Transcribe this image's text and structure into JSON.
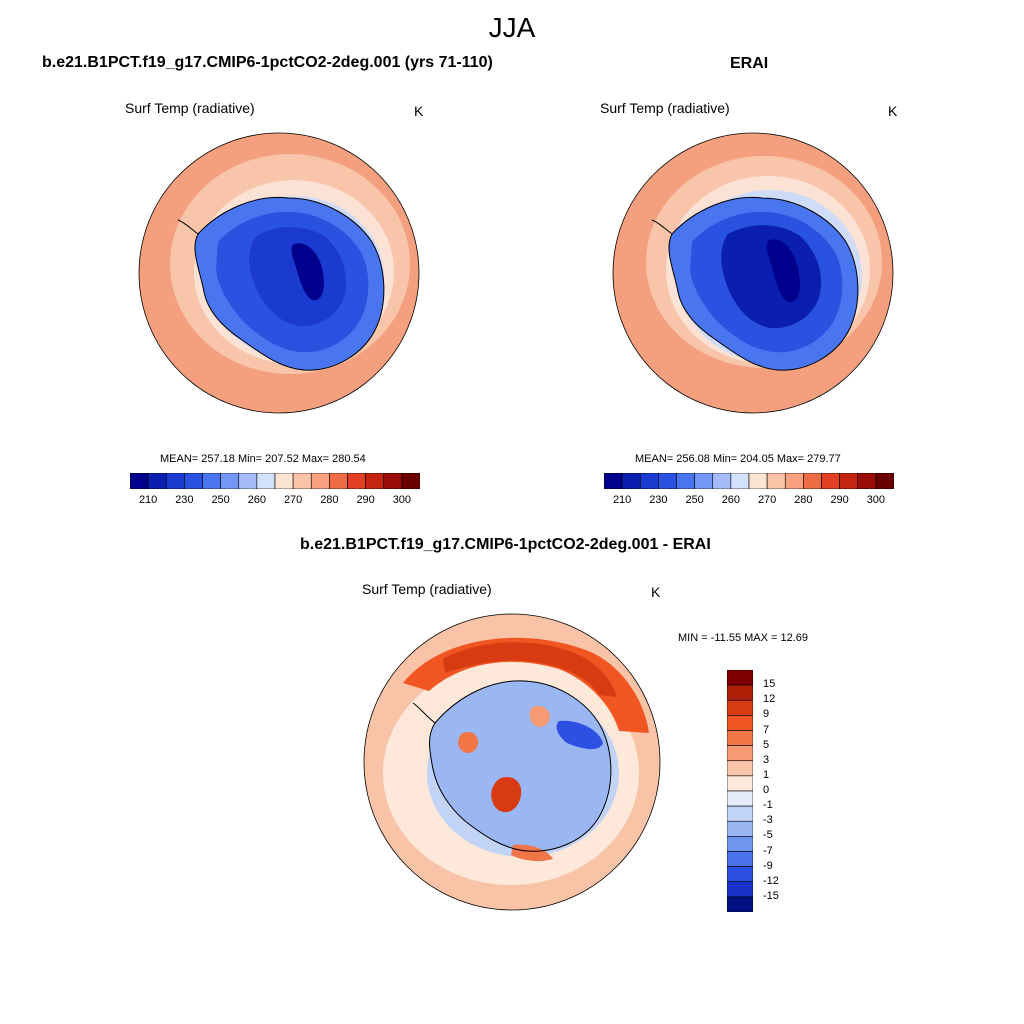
{
  "figure": {
    "season": "JJA",
    "panels": [
      {
        "case_title": "b.e21.B1PCT.f19_g17.CMIP6-1pctCO2-2deg.001 (yrs 71-110)",
        "variable": "Surf Temp (radiative)",
        "units": "K",
        "stats": "MEAN= 257.18  Min= 207.52  Max= 280.54",
        "mean": 257.18,
        "min": 207.52,
        "max": 280.54
      },
      {
        "case_title": "ERAI",
        "variable": "Surf Temp (radiative)",
        "units": "K",
        "stats": "MEAN= 256.08  Min= 204.05  Max= 279.77",
        "mean": 256.08,
        "min": 204.05,
        "max": 279.77
      },
      {
        "case_title": "b.e21.B1PCT.f19_g17.CMIP6-1pctCO2-2deg.001 - ERAI",
        "variable": "Surf Temp (radiative)",
        "units": "K",
        "stats": "MIN = -11.55 MAX =  12.69",
        "min": -11.55,
        "max": 12.69
      }
    ],
    "temp_colorbar": {
      "tick_labels": [
        "210",
        "230",
        "250",
        "260",
        "270",
        "280",
        "290",
        "300"
      ],
      "colors": [
        "#00008c",
        "#0a1fb0",
        "#1a3ad0",
        "#2a52e0",
        "#4a75f0",
        "#7497f5",
        "#a3bbf8",
        "#d3e2fb",
        "#fde3d2",
        "#fbc4a8",
        "#f6a07e",
        "#ef6c44",
        "#e24024",
        "#c52510",
        "#9a0c06",
        "#6b0000"
      ]
    },
    "diff_colorbar": {
      "labels": [
        "15",
        "12",
        "9",
        "7",
        "5",
        "3",
        "1",
        "0",
        "-1",
        "-3",
        "-5",
        "-7",
        "-9",
        "-12",
        "-15"
      ],
      "colors": [
        "#7e0000",
        "#b02008",
        "#d83a12",
        "#f05522",
        "#f27548",
        "#f59a72",
        "#f8c3a6",
        "#fde8da",
        "#e4ecf9",
        "#c2d4f6",
        "#9ab7f3",
        "#7196ef",
        "#4a73eb",
        "#2d4fe2",
        "#1a30c8",
        "#001080"
      ]
    },
    "map_palette": {
      "ocean_warm": "#f4a07e",
      "ocean_mid": "#f8c5aa",
      "ice_edge": "#fbe2d4",
      "ice_cold": "#cfdcf9",
      "shelf": "#8fb0f4",
      "coast": "#4a75f0",
      "inland": "#2a52e0",
      "plateau": "#1a3ad0",
      "dome": "#00008c"
    }
  }
}
